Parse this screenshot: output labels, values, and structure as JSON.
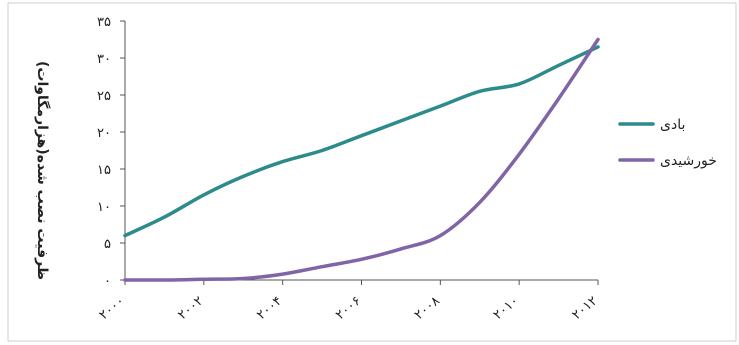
{
  "chart_data": {
    "type": "line",
    "ylabel": "ظرفیت نصب شده(هزارمگاوات)",
    "xlabel": "",
    "title": "",
    "ylim": [
      0,
      35
    ],
    "yticks": [
      0,
      5,
      10,
      15,
      20,
      25,
      30,
      35
    ],
    "ytick_labels": [
      "۰",
      "۵",
      "۱۰",
      "۱۵",
      "۲۰",
      "۲۵",
      "۳۰",
      "۳۵"
    ],
    "xlim": [
      2000,
      2012
    ],
    "xticks": [
      2000,
      2002,
      2004,
      2006,
      2008,
      2010,
      2012
    ],
    "xtick_labels": [
      "۲۰۰۰",
      "۲۰۰۲",
      "۲۰۰۴",
      "۲۰۰۶",
      "۲۰۰۸",
      "۲۰۱۰",
      "۲۰۱۲"
    ],
    "legend_position": "right",
    "series": [
      {
        "name": "بادی",
        "color": "#2e8b8b",
        "x": [
          2000,
          2001,
          2002,
          2003,
          2004,
          2005,
          2006,
          2007,
          2008,
          2009,
          2010,
          2011,
          2012
        ],
        "y": [
          6,
          8.5,
          11.5,
          14,
          16,
          17.5,
          19.5,
          21.5,
          23.5,
          25.5,
          26.5,
          29,
          31.5
        ]
      },
      {
        "name": "خورشیدی",
        "color": "#8064a8",
        "x": [
          2000,
          2001,
          2002,
          2003,
          2004,
          2005,
          2006,
          2007,
          2008,
          2009,
          2010,
          2011,
          2012
        ],
        "y": [
          0,
          0,
          0.1,
          0.2,
          0.8,
          1.8,
          2.8,
          4.2,
          6,
          10.5,
          17,
          24.5,
          32.5
        ]
      }
    ]
  }
}
